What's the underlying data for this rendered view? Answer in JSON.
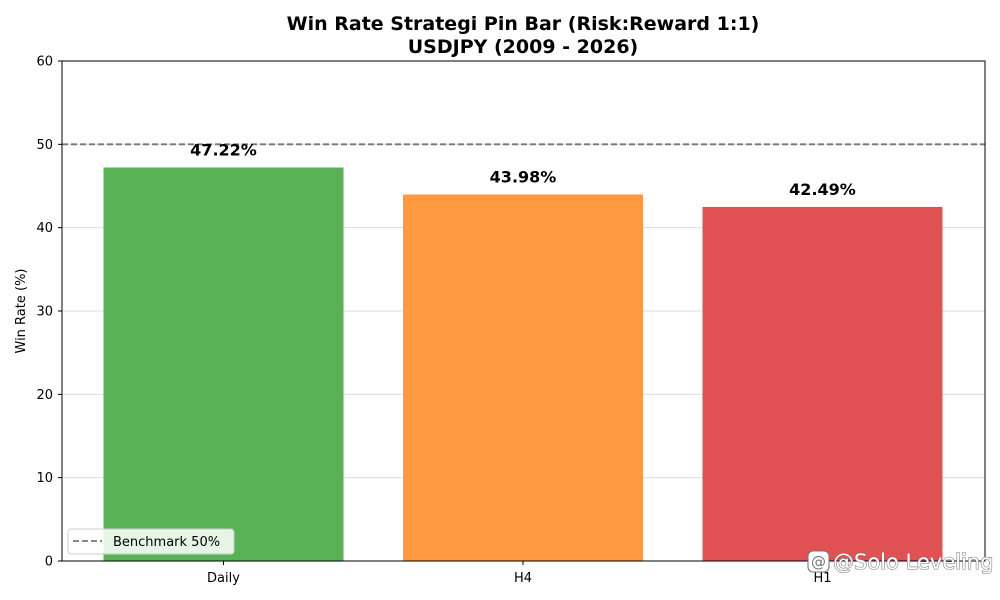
{
  "chart_data": {
    "type": "bar",
    "title": "Win Rate Strategi Pin Bar (Risk:Reward 1:1)",
    "subtitle": "USDJPY (2009 - 2026)",
    "categories": [
      "Daily",
      "H4",
      "H1"
    ],
    "values": [
      47.22,
      43.98,
      42.49
    ],
    "value_labels": [
      "47.22%",
      "43.98%",
      "42.49%"
    ],
    "colors": [
      "#59b356",
      "#fe9942",
      "#e05154"
    ],
    "xlabel": "",
    "ylabel": "Win Rate (%)",
    "ylim": [
      0,
      60
    ],
    "yticks": [
      0,
      10,
      20,
      30,
      40,
      50,
      60
    ],
    "ytick_labels": [
      "0",
      "10",
      "20",
      "30",
      "40",
      "50",
      "60"
    ],
    "grid": "horizontal",
    "benchmark": {
      "value": 50,
      "label": "Benchmark 50%",
      "style": "dashed",
      "color": "#777777"
    },
    "legend": {
      "placement": "lower-left",
      "entries": [
        "Benchmark 50%"
      ]
    }
  },
  "watermark": {
    "text": "@Solo Leveling",
    "icon": "threads-icon"
  }
}
